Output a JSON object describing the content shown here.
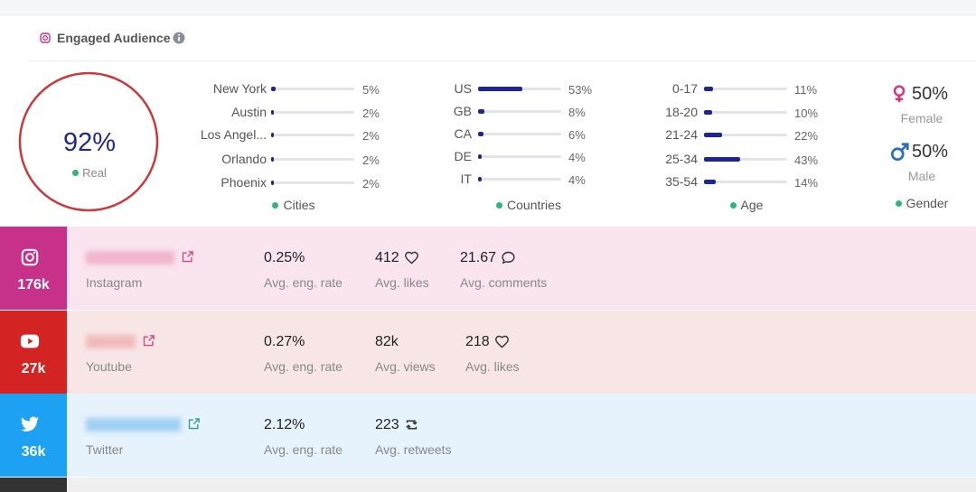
{
  "header": {
    "title": "Engaged Audience"
  },
  "real": {
    "value": "92%",
    "label": "Real"
  },
  "cities": {
    "title": "Cities",
    "labels": [
      "New York",
      "Austin",
      "Los Angel...",
      "Orlando",
      "Phoenix"
    ],
    "values": [
      5,
      2,
      2,
      2,
      2
    ],
    "value_labels": [
      "5%",
      "2%",
      "2%",
      "2%",
      "2%"
    ]
  },
  "countries": {
    "title": "Countries",
    "labels": [
      "US",
      "GB",
      "CA",
      "DE",
      "IT"
    ],
    "values": [
      53,
      8,
      6,
      4,
      4
    ],
    "value_labels": [
      "53%",
      "8%",
      "6%",
      "4%",
      "4%"
    ]
  },
  "age": {
    "title": "Age",
    "labels": [
      "0-17",
      "18-20",
      "21-24",
      "25-34",
      "35-54"
    ],
    "values": [
      11,
      10,
      22,
      43,
      14
    ],
    "value_labels": [
      "11%",
      "10%",
      "22%",
      "43%",
      "14%"
    ]
  },
  "gender": {
    "title": "Gender",
    "female": {
      "value": "50%",
      "label": "Female"
    },
    "male": {
      "value": "50%",
      "label": "Male"
    }
  },
  "platforms": [
    {
      "name": "Instagram",
      "followers": "176k",
      "stats": [
        {
          "value": "0.25%",
          "label": "Avg. eng. rate"
        },
        {
          "value": "412",
          "label": "Avg. likes"
        },
        {
          "value": "21.67",
          "label": "Avg. comments"
        }
      ]
    },
    {
      "name": "Youtube",
      "followers": "27k",
      "stats": [
        {
          "value": "0.27%",
          "label": "Avg. eng. rate"
        },
        {
          "value": "82k",
          "label": "Avg. views"
        },
        {
          "value": "218",
          "label": "Avg. likes"
        }
      ]
    },
    {
      "name": "Twitter",
      "followers": "36k",
      "stats": [
        {
          "value": "2.12%",
          "label": "Avg. eng. rate"
        },
        {
          "value": "223",
          "label": "Avg. retweets"
        }
      ]
    }
  ]
}
